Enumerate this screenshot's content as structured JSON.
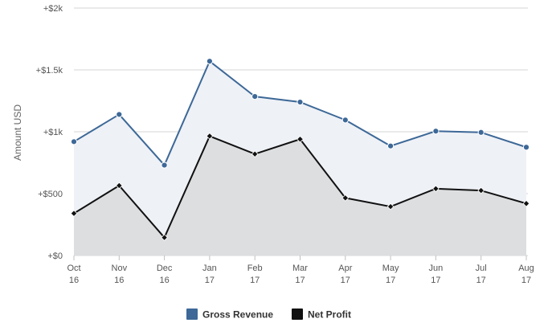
{
  "chart_data": {
    "type": "area",
    "ylabel": "Amount USD",
    "ylim": [
      0,
      2000
    ],
    "y_ticks": [
      {
        "value": 0,
        "label": "+$0"
      },
      {
        "value": 500,
        "label": "+$500"
      },
      {
        "value": 1000,
        "label": "+$1k"
      },
      {
        "value": 1500,
        "label": "+$1.5k"
      },
      {
        "value": 2000,
        "label": "+$2k"
      }
    ],
    "categories": [
      {
        "month": "Oct",
        "year": "16"
      },
      {
        "month": "Nov",
        "year": "16"
      },
      {
        "month": "Dec",
        "year": "16"
      },
      {
        "month": "Jan",
        "year": "17"
      },
      {
        "month": "Feb",
        "year": "17"
      },
      {
        "month": "Mar",
        "year": "17"
      },
      {
        "month": "Apr",
        "year": "17"
      },
      {
        "month": "May",
        "year": "17"
      },
      {
        "month": "Jun",
        "year": "17"
      },
      {
        "month": "Jul",
        "year": "17"
      },
      {
        "month": "Aug",
        "year": "17"
      }
    ],
    "series": [
      {
        "name": "Gross Revenue",
        "color": "#3d6897",
        "fill": "#eef1f6",
        "marker": "circle",
        "values": [
          920,
          1140,
          730,
          1570,
          1285,
          1240,
          1095,
          885,
          1005,
          995,
          875
        ]
      },
      {
        "name": "Net Profit",
        "color": "#111111",
        "fill": "#dcdee0",
        "marker": "diamond",
        "values": [
          340,
          565,
          145,
          965,
          820,
          940,
          465,
          395,
          540,
          525,
          420
        ]
      }
    ],
    "grid": true,
    "legend_position": "bottom-center"
  }
}
